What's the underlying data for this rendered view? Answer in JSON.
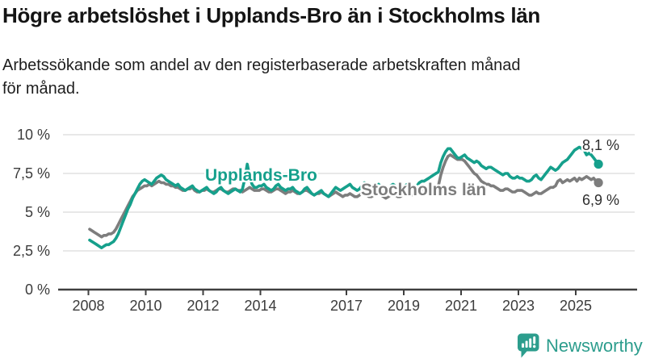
{
  "header": {
    "title": "Högre arbetslöshet i Upplands-Bro än i Stockholms län",
    "subtitle": "Arbetssökande som andel av den registerbaserade arbetskraften månad för månad.",
    "subtitle_lines": [
      "Arbetssökande som andel av den registerbaserade arbetskraften månad",
      "för månad."
    ]
  },
  "chart_data": {
    "type": "line",
    "title": "Högre arbetslöshet i Upplands-Bro än i Stockholms län",
    "subtitle": "Arbetssökande som andel av den registerbaserade arbetskraften månad för månad.",
    "x_unit": "month",
    "x_start": "2008-01",
    "x_end": "2025-10",
    "xlim": [
      2007.1,
      2027.1
    ],
    "ylim": [
      0,
      10
    ],
    "grid": "horizontal",
    "legend": "inline-labels",
    "x_ticks": [
      2008,
      2010,
      2012,
      2014,
      2017,
      2019,
      2021,
      2023,
      2025
    ],
    "y_ticks": [
      {
        "value": 0,
        "label": "0 %"
      },
      {
        "value": 2.5,
        "label": "2,5 %"
      },
      {
        "value": 5,
        "label": "5 %"
      },
      {
        "value": 7.5,
        "label": "7,5 %"
      },
      {
        "value": 10,
        "label": "10 %"
      }
    ],
    "series": [
      {
        "name": "Upplands-Bro",
        "color": "#16a08c",
        "end_label": "8,1 %",
        "end_value": 8.1,
        "values": [
          3.2,
          3.1,
          3.0,
          2.9,
          2.8,
          2.7,
          2.8,
          2.9,
          2.9,
          3.0,
          3.1,
          3.3,
          3.6,
          4.0,
          4.4,
          4.8,
          5.2,
          5.5,
          5.9,
          6.2,
          6.5,
          6.8,
          7.0,
          7.1,
          7.0,
          6.9,
          6.8,
          7.0,
          7.2,
          7.3,
          7.4,
          7.3,
          7.1,
          7.0,
          6.9,
          6.8,
          6.7,
          6.8,
          6.6,
          6.5,
          6.4,
          6.5,
          6.6,
          6.7,
          6.5,
          6.4,
          6.3,
          6.4,
          6.5,
          6.6,
          6.4,
          6.3,
          6.2,
          6.3,
          6.5,
          6.6,
          6.4,
          6.3,
          6.2,
          6.3,
          6.4,
          6.5,
          6.4,
          6.3,
          6.5,
          7.2,
          8.1,
          7.3,
          6.8,
          6.6,
          6.6,
          6.7,
          6.7,
          6.8,
          6.6,
          6.5,
          6.4,
          6.5,
          6.7,
          6.8,
          6.6,
          6.5,
          6.4,
          6.5,
          6.5,
          6.6,
          6.4,
          6.3,
          6.2,
          6.3,
          6.5,
          6.6,
          6.4,
          6.2,
          6.1,
          6.2,
          6.3,
          6.4,
          6.2,
          6.1,
          6.0,
          6.2,
          6.4,
          6.6,
          6.5,
          6.4,
          6.5,
          6.6,
          6.7,
          6.8,
          6.6,
          6.5,
          6.4,
          6.5,
          6.7,
          6.9,
          6.8,
          6.6,
          6.5,
          6.6,
          6.7,
          6.8,
          6.6,
          6.5,
          6.4,
          6.5,
          6.7,
          6.8,
          6.7,
          6.6,
          6.5,
          6.6,
          6.7,
          6.8,
          6.7,
          6.6,
          6.6,
          6.7,
          6.9,
          7.0,
          7.0,
          7.1,
          7.2,
          7.3,
          7.4,
          7.5,
          7.6,
          8.2,
          8.6,
          8.9,
          9.1,
          9.1,
          8.9,
          8.7,
          8.5,
          8.5,
          8.6,
          8.7,
          8.5,
          8.4,
          8.3,
          8.2,
          8.3,
          8.2,
          8.0,
          7.9,
          7.8,
          7.9,
          7.9,
          7.8,
          7.7,
          7.6,
          7.5,
          7.4,
          7.5,
          7.5,
          7.3,
          7.2,
          7.2,
          7.3,
          7.2,
          7.2,
          7.1,
          7.0,
          7.0,
          7.1,
          7.3,
          7.4,
          7.2,
          7.1,
          7.3,
          7.5,
          7.7,
          7.9,
          7.8,
          7.7,
          7.8,
          8.0,
          8.2,
          8.3,
          8.4,
          8.6,
          8.8,
          9.0,
          9.1,
          9.2,
          9.1,
          9.0,
          8.7,
          8.8,
          8.7,
          8.5,
          8.3,
          8.1
        ]
      },
      {
        "name": "Stockholms län",
        "color": "#7d7d7d",
        "end_label": "6,9 %",
        "end_value": 6.9,
        "values": [
          3.9,
          3.8,
          3.7,
          3.6,
          3.5,
          3.4,
          3.5,
          3.5,
          3.6,
          3.6,
          3.7,
          3.9,
          4.2,
          4.5,
          4.8,
          5.1,
          5.4,
          5.7,
          6.0,
          6.2,
          6.4,
          6.5,
          6.6,
          6.7,
          6.7,
          6.8,
          6.7,
          6.8,
          6.9,
          7.0,
          6.9,
          6.9,
          6.8,
          6.8,
          6.7,
          6.7,
          6.6,
          6.6,
          6.5,
          6.4,
          6.4,
          6.5,
          6.5,
          6.6,
          6.4,
          6.3,
          6.3,
          6.4,
          6.4,
          6.5,
          6.4,
          6.3,
          6.3,
          6.4,
          6.5,
          6.5,
          6.4,
          6.3,
          6.3,
          6.4,
          6.5,
          6.5,
          6.4,
          6.4,
          6.3,
          6.4,
          6.5,
          6.6,
          6.5,
          6.4,
          6.4,
          6.4,
          6.5,
          6.5,
          6.4,
          6.3,
          6.3,
          6.4,
          6.5,
          6.5,
          6.4,
          6.3,
          6.2,
          6.3,
          6.3,
          6.4,
          6.3,
          6.2,
          6.2,
          6.3,
          6.4,
          6.4,
          6.3,
          6.2,
          6.1,
          6.2,
          6.2,
          6.3,
          6.2,
          6.1,
          6.0,
          6.1,
          6.2,
          6.3,
          6.2,
          6.1,
          6.0,
          6.1,
          6.1,
          6.2,
          6.1,
          6.0,
          6.0,
          6.1,
          6.2,
          6.2,
          6.1,
          6.0,
          6.0,
          6.1,
          6.1,
          6.2,
          6.1,
          6.0,
          5.9,
          6.0,
          6.1,
          6.2,
          6.1,
          6.0,
          6.0,
          6.1,
          6.1,
          6.2,
          6.1,
          6.1,
          6.1,
          6.2,
          6.3,
          6.4,
          6.3,
          6.3,
          6.3,
          6.4,
          6.4,
          6.5,
          6.7,
          7.4,
          7.9,
          8.3,
          8.6,
          8.7,
          8.6,
          8.5,
          8.4,
          8.4,
          8.4,
          8.3,
          8.1,
          7.9,
          7.7,
          7.5,
          7.4,
          7.2,
          7.0,
          6.9,
          6.8,
          6.8,
          6.7,
          6.7,
          6.6,
          6.5,
          6.4,
          6.4,
          6.5,
          6.5,
          6.4,
          6.3,
          6.3,
          6.4,
          6.4,
          6.4,
          6.3,
          6.2,
          6.1,
          6.1,
          6.2,
          6.3,
          6.2,
          6.2,
          6.3,
          6.4,
          6.5,
          6.6,
          6.6,
          6.7,
          7.0,
          7.1,
          6.9,
          7.0,
          7.1,
          7.0,
          7.1,
          7.2,
          7.0,
          7.2,
          7.1,
          7.2,
          7.3,
          7.2,
          7.1,
          7.2,
          7.0,
          6.9
        ]
      }
    ],
    "colors": {
      "grid": "#d9d9d9",
      "axis": "#3f3f3f",
      "tick_label": "#3c3c3c",
      "end_label": "#2e2e2e"
    }
  },
  "branding": {
    "logo_text": "Newsworthy",
    "logo_icon": "newsworthy-speech-bubble-bar-chart-icon",
    "logo_color": "#2c9d8d"
  }
}
